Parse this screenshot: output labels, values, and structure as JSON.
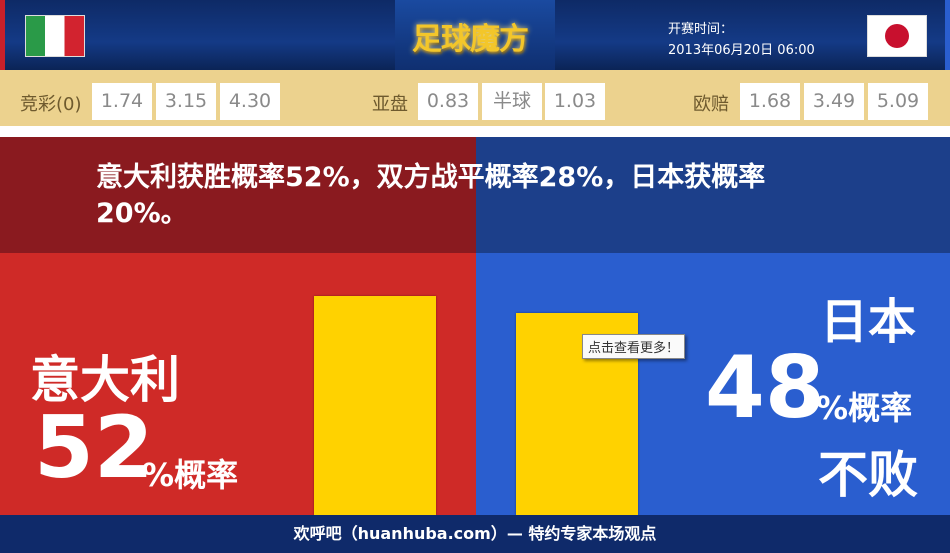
{
  "header": {
    "logo": "足球魔方",
    "time_label": "开赛时间：",
    "time_value": "2013年06月20日 06:00",
    "home_flag": "italy-flag",
    "away_flag": "japan-flag"
  },
  "odds": {
    "jingcai": {
      "label": "竞彩(0)",
      "values": [
        "1.74",
        "3.15",
        "4.30"
      ]
    },
    "yapan": {
      "label": "亚盘",
      "values": [
        "0.83",
        "半球",
        "1.03"
      ]
    },
    "oupei": {
      "label": "欧赔",
      "values": [
        "1.68",
        "3.49",
        "5.09"
      ]
    }
  },
  "headline": "意大利获胜概率52%，双方战平概率28%，日本获概率20%。",
  "home": {
    "name": "意大利",
    "percent": "52",
    "suffix": "%概率",
    "bar_value": 52,
    "color": "#cf2a27"
  },
  "away": {
    "name": "日本",
    "percent": "48",
    "suffix": "%概率",
    "note": "不败",
    "bar_value": 48,
    "color": "#2a5ecf"
  },
  "tooltip": "点击查看更多！",
  "footer": "欢呼吧（huanhuba.com）— 特约专家本场观点"
}
